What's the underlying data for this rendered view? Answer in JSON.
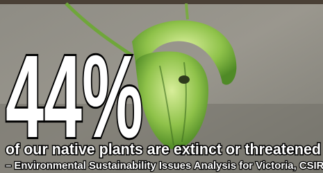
{
  "headline": {
    "figure": "44%",
    "statement": "of our native plants are extinct or  threatened",
    "source": "– Environmental Sustainability Issues Analysis for Victoria, CSIRO"
  }
}
